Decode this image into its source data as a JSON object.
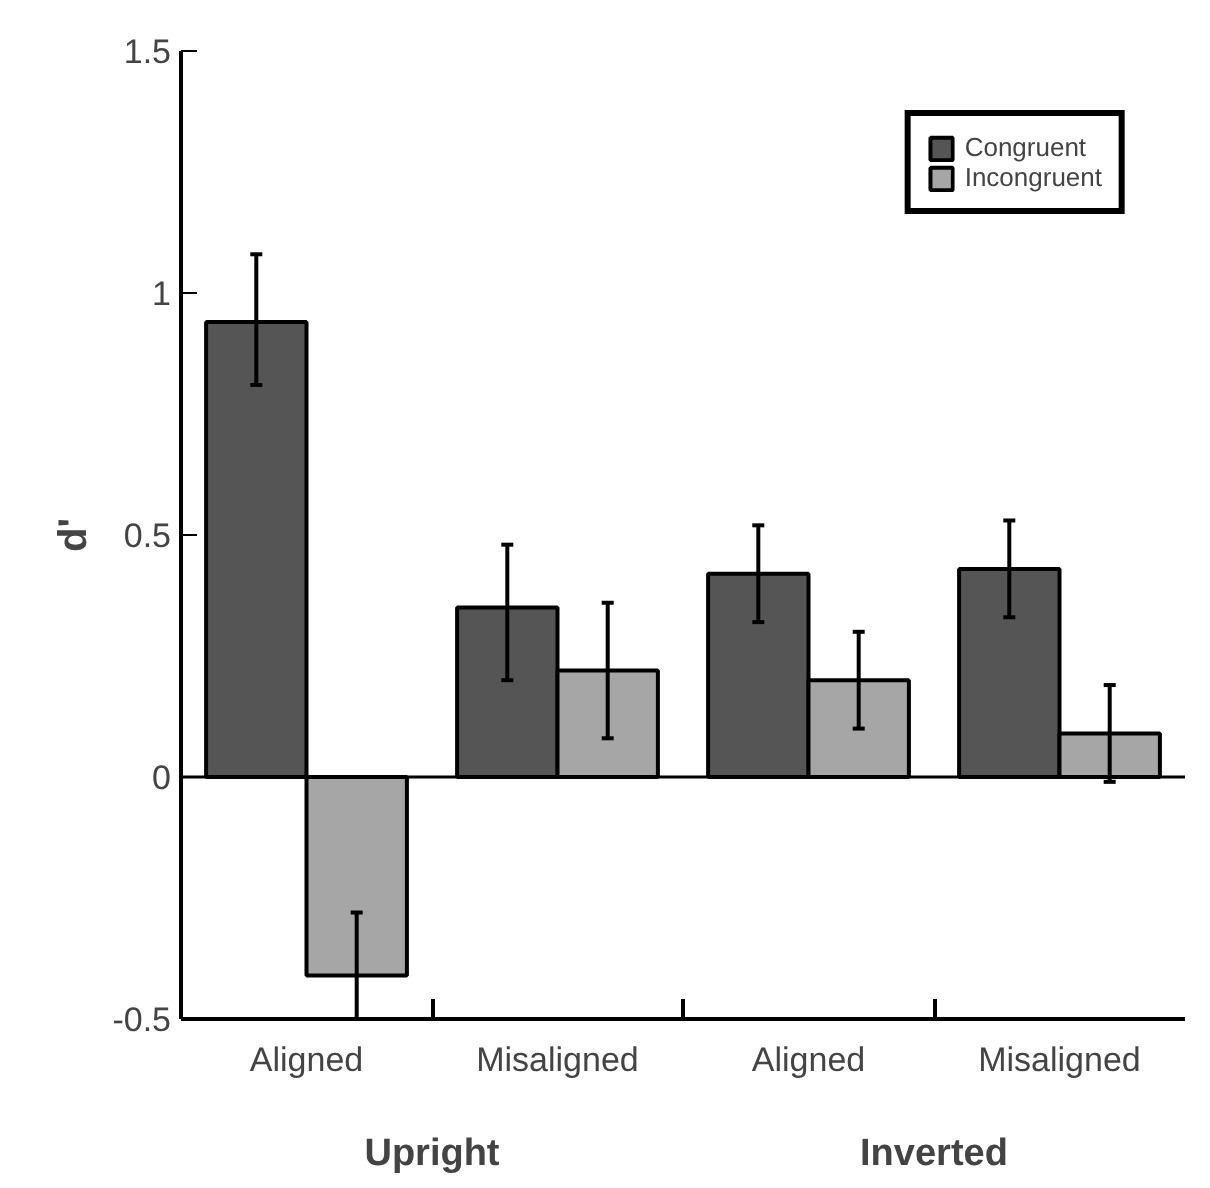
{
  "chart_data": {
    "type": "bar",
    "ylabel": "d'",
    "categories": [
      "Aligned",
      "Misaligned",
      "Aligned",
      "Misaligned"
    ],
    "series": [
      {
        "name": "Congruent",
        "color": "#555555",
        "values": [
          0.94,
          0.35,
          0.42,
          0.43
        ],
        "errors": [
          [
            0.81,
            1.08
          ],
          [
            0.2,
            0.48
          ],
          [
            0.32,
            0.52
          ],
          [
            0.33,
            0.53
          ]
        ]
      },
      {
        "name": "Incongruent",
        "color": "#a6a6a6",
        "values": [
          -0.41,
          0.22,
          0.2,
          0.09
        ],
        "errors": [
          [
            -0.5,
            -0.28
          ],
          [
            0.08,
            0.36
          ],
          [
            0.1,
            0.3
          ],
          [
            -0.01,
            0.19
          ]
        ]
      }
    ],
    "annotations": [
      "Upright",
      "Inverted"
    ],
    "ref_lines": [
      {
        "axis": "y",
        "value": 0,
        "color": "#000000"
      }
    ],
    "ylim": [
      -0.5,
      1.5
    ],
    "yticks": [
      -0.5,
      0,
      0.5,
      1,
      1.5
    ],
    "grid": false,
    "legend": "top right"
  }
}
